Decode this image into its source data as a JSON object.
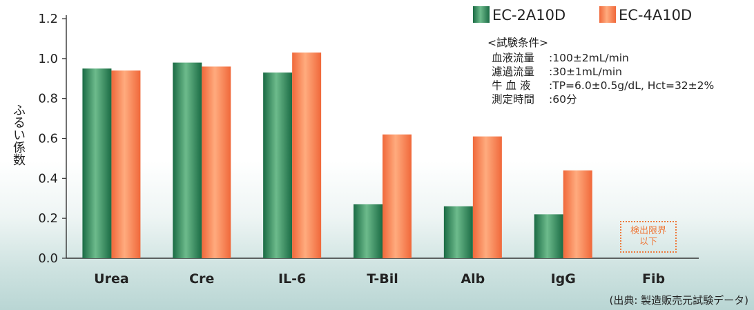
{
  "chart_data": {
    "type": "bar",
    "ylabel": "ふるい係数",
    "ylim": [
      0,
      1.2
    ],
    "yticks": [
      "0.0",
      "0.2",
      "0.4",
      "0.6",
      "0.8",
      "1.0",
      "1.2"
    ],
    "categories": [
      "Urea",
      "Cre",
      "IL-6",
      "T-Bil",
      "Alb",
      "IgG",
      "Fib"
    ],
    "series": [
      {
        "name": "EC-2A10D",
        "color": "#1f7a4d",
        "values": [
          0.95,
          0.98,
          0.93,
          0.27,
          0.26,
          0.22,
          null
        ]
      },
      {
        "name": "EC-4A10D",
        "color": "#f07a42",
        "values": [
          0.94,
          0.96,
          1.03,
          0.62,
          0.61,
          0.44,
          null
        ]
      }
    ],
    "legend_position": "top-right",
    "annotations": {
      "below_detection": "検出限界\n以下",
      "conditions_title": "<試験条件>",
      "conditions": [
        {
          "label": "血液流量",
          "value": ":100±2mL/min"
        },
        {
          "label": "濾過流量",
          "value": ":30±1mL/min"
        },
        {
          "label": "牛 血 液",
          "value": ":TP=6.0±0.5g/dL, Hct=32±2%"
        },
        {
          "label": "測定時間",
          "value": ":60分"
        }
      ],
      "source": "(出典: 製造販売元試験データ)"
    }
  }
}
